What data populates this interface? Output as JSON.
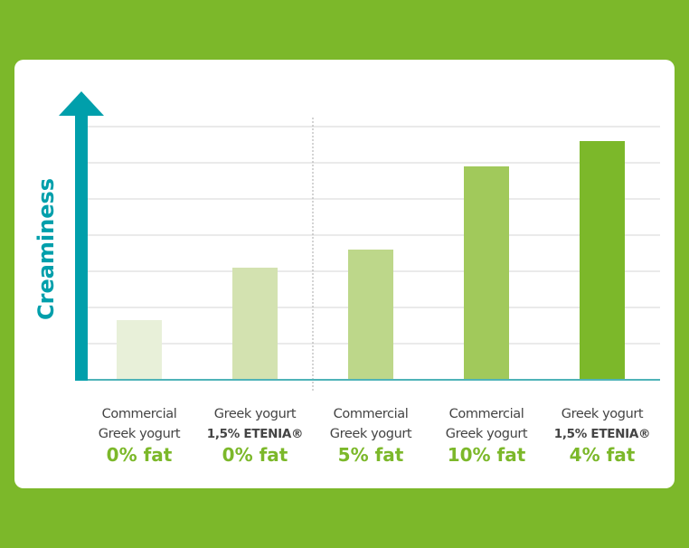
{
  "chart_data": {
    "type": "bar",
    "title": "",
    "xlabel": "",
    "ylabel": "Creaminess",
    "ylim": [
      0,
      7
    ],
    "grid": true,
    "categories": [
      {
        "line1": "Commercial",
        "line2": "Greek yogurt",
        "line2_bold": false,
        "fat": "0% fat"
      },
      {
        "line1": "Greek yogurt",
        "line2": "1,5% ETENIA®",
        "line2_bold": true,
        "fat": "0% fat"
      },
      {
        "line1": "Commercial",
        "line2": "Greek yogurt",
        "line2_bold": false,
        "fat": "5% fat"
      },
      {
        "line1": "Commercial",
        "line2": "Greek yogurt",
        "line2_bold": false,
        "fat": "10% fat"
      },
      {
        "line1": "Greek yogurt",
        "line2": "1,5% ETENIA®",
        "line2_bold": true,
        "fat": "4% fat"
      }
    ],
    "values": [
      1.65,
      3.1,
      3.6,
      5.9,
      6.6
    ],
    "bar_colors": [
      "#e8f0d9",
      "#d3e2b0",
      "#bdd78a",
      "#a1c95b",
      "#7cb82a"
    ],
    "axis_color": "#009fab",
    "background_color": "#7cb82a"
  }
}
